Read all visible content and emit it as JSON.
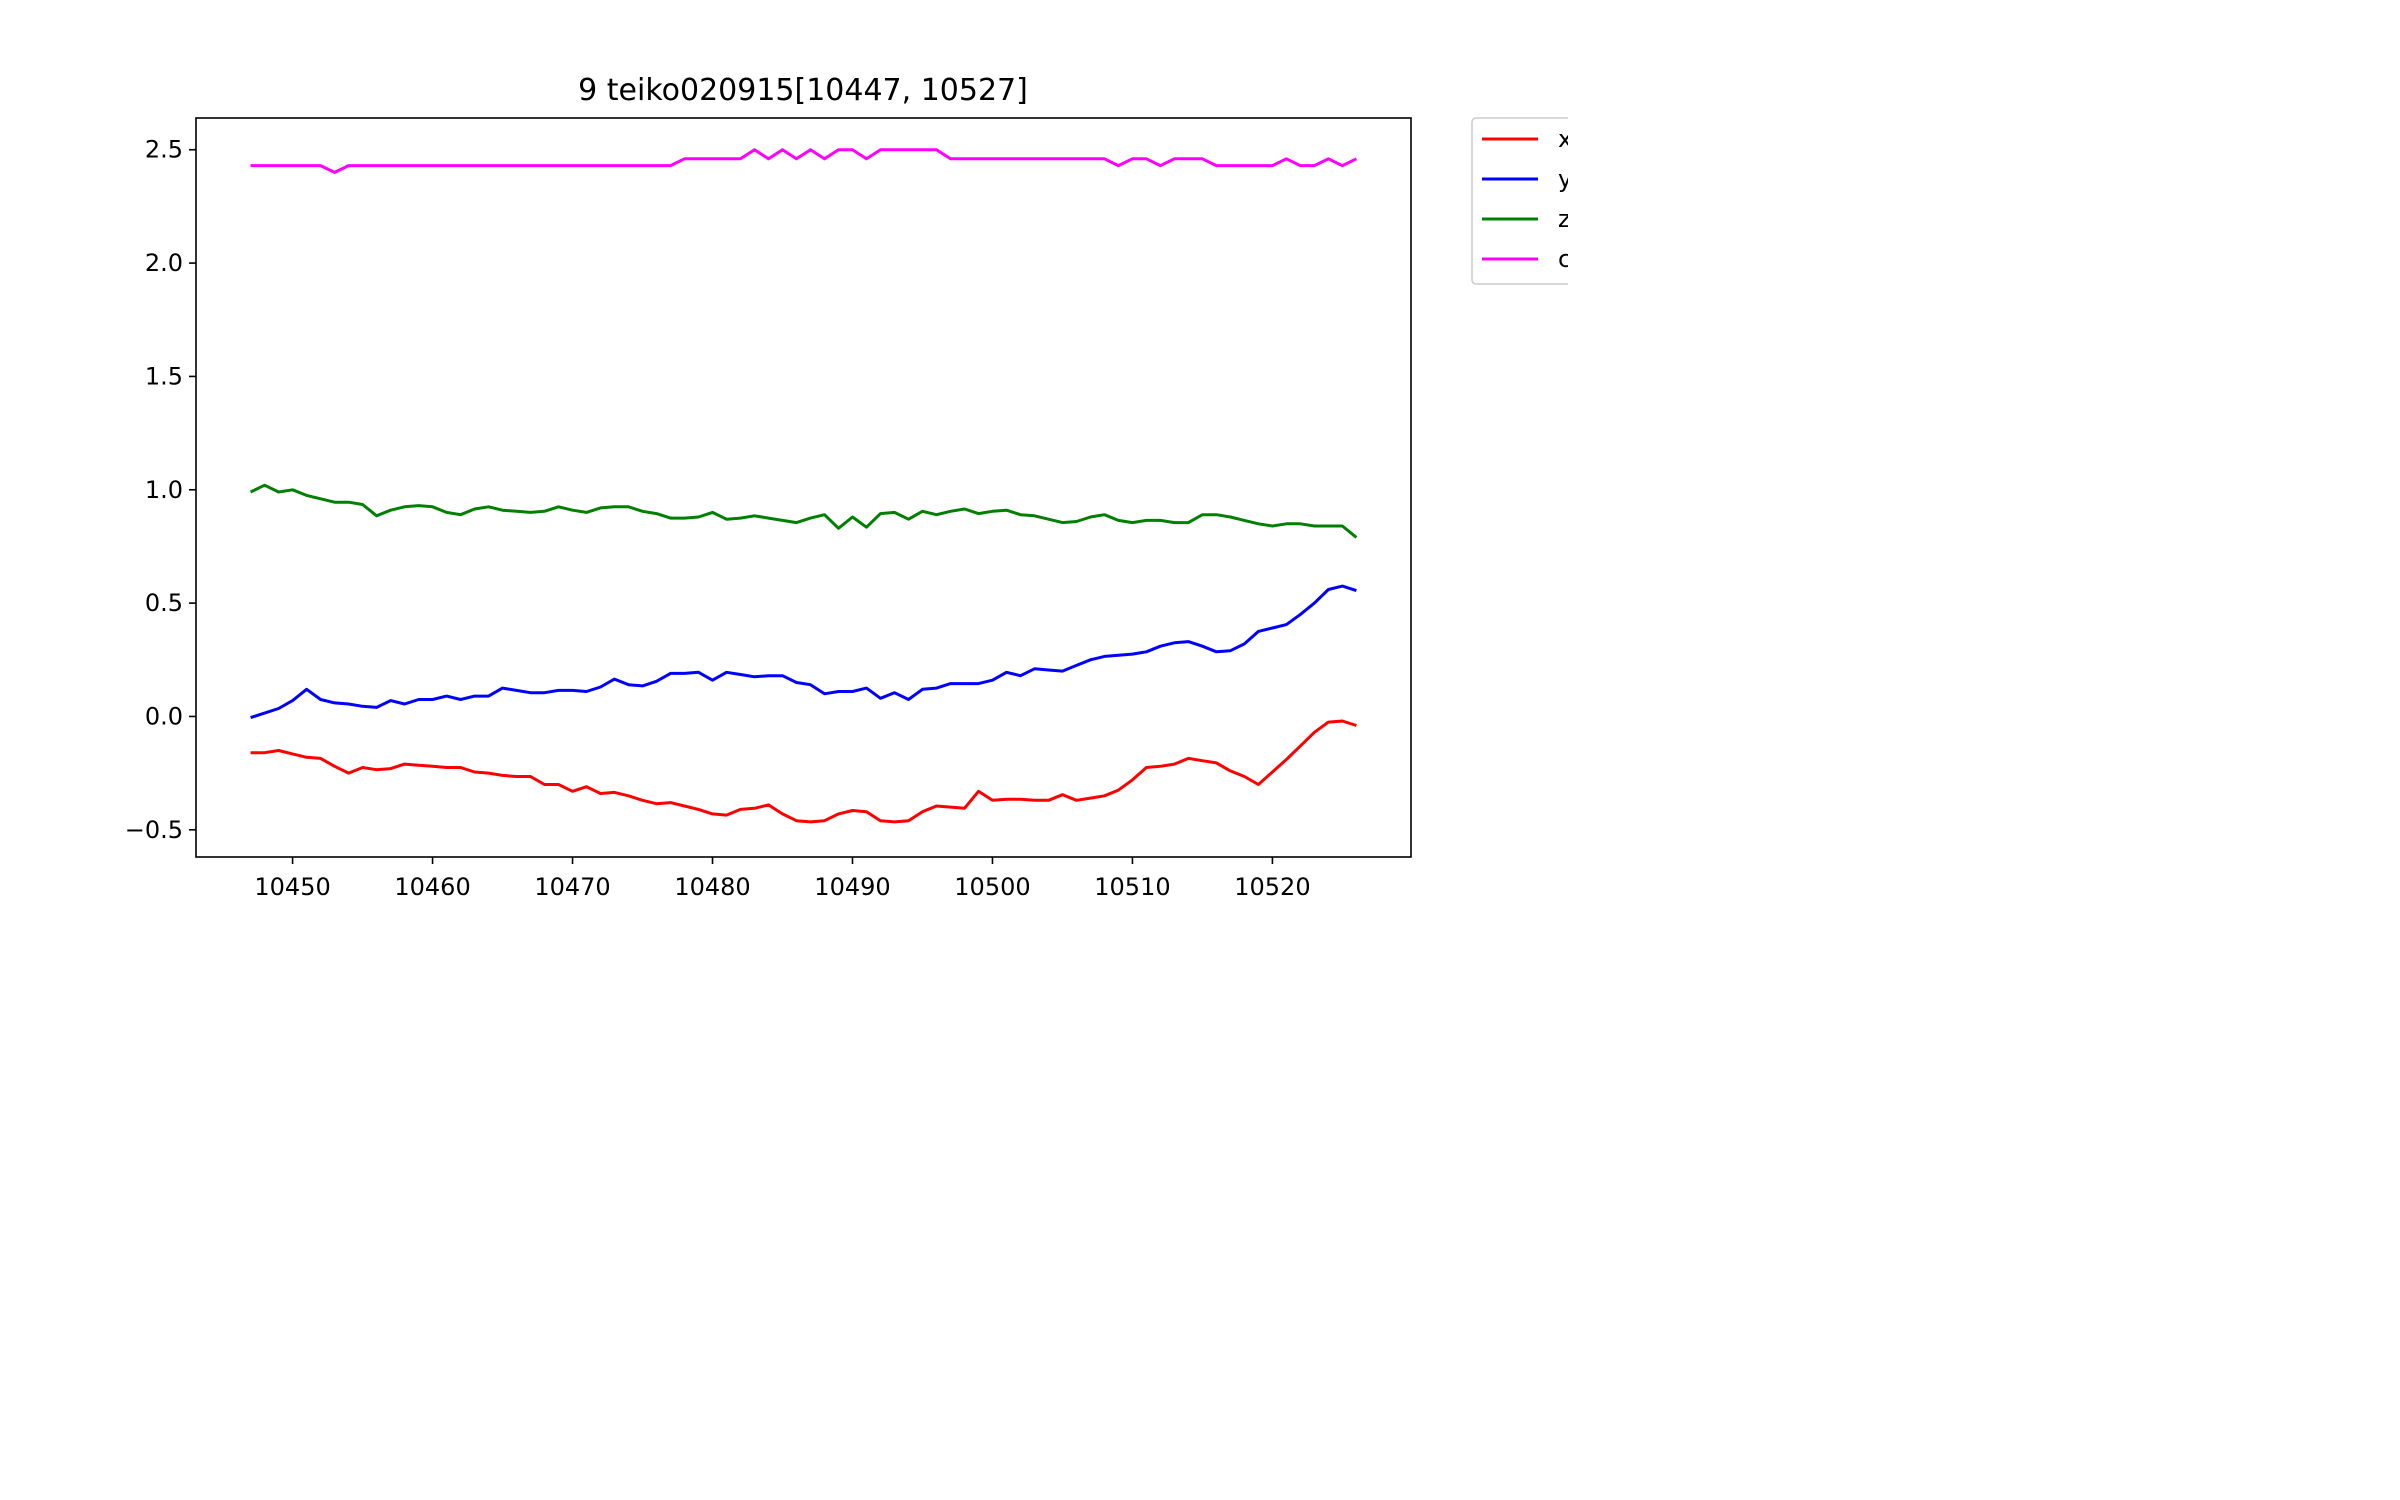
{
  "chart_data": {
    "type": "line",
    "title": "9 teiko020915[10447, 10527]",
    "xlabel": "",
    "ylabel": "",
    "xlim": [
      10443.1,
      10529.9
    ],
    "ylim": [
      -0.62,
      2.64
    ],
    "xticks": [
      10450,
      10460,
      10470,
      10480,
      10490,
      10500,
      10510,
      10520
    ],
    "xtick_labels": [
      "10450",
      "10460",
      "10470",
      "10480",
      "10490",
      "10500",
      "10510",
      "10520"
    ],
    "yticks": [
      -0.5,
      0.0,
      0.5,
      1.0,
      1.5,
      2.0,
      2.5
    ],
    "ytick_labels": [
      "−0.5",
      "0.0",
      "0.5",
      "1.0",
      "1.5",
      "2.0",
      "2.5"
    ],
    "grid": false,
    "legend_position": "outside-top-right",
    "x": [
      10447,
      10448,
      10449,
      10450,
      10451,
      10452,
      10453,
      10454,
      10455,
      10456,
      10457,
      10458,
      10459,
      10460,
      10461,
      10462,
      10463,
      10464,
      10465,
      10466,
      10467,
      10468,
      10469,
      10470,
      10471,
      10472,
      10473,
      10474,
      10475,
      10476,
      10477,
      10478,
      10479,
      10480,
      10481,
      10482,
      10483,
      10484,
      10485,
      10486,
      10487,
      10488,
      10489,
      10490,
      10491,
      10492,
      10493,
      10494,
      10495,
      10496,
      10497,
      10498,
      10499,
      10500,
      10501,
      10502,
      10503,
      10504,
      10505,
      10506,
      10507,
      10508,
      10509,
      10510,
      10511,
      10512,
      10513,
      10514,
      10515,
      10516,
      10517,
      10518,
      10519,
      10520,
      10521,
      10522,
      10523,
      10524,
      10525,
      10526
    ],
    "series": [
      {
        "name": "x",
        "color": "#ff0000",
        "values": [
          -0.16,
          -0.16,
          -0.15,
          -0.165,
          -0.18,
          -0.185,
          -0.22,
          -0.25,
          -0.225,
          -0.235,
          -0.23,
          -0.21,
          -0.215,
          -0.22,
          -0.225,
          -0.225,
          -0.245,
          -0.25,
          -0.26,
          -0.265,
          -0.265,
          -0.3,
          -0.3,
          -0.33,
          -0.31,
          -0.34,
          -0.335,
          -0.35,
          -0.37,
          -0.385,
          -0.38,
          -0.395,
          -0.41,
          -0.43,
          -0.435,
          -0.41,
          -0.405,
          -0.39,
          -0.43,
          -0.46,
          -0.465,
          -0.46,
          -0.43,
          -0.415,
          -0.42,
          -0.46,
          -0.465,
          -0.46,
          -0.42,
          -0.395,
          -0.4,
          -0.405,
          -0.33,
          -0.37,
          -0.365,
          -0.365,
          -0.37,
          -0.37,
          -0.345,
          -0.37,
          -0.36,
          -0.35,
          -0.325,
          -0.28,
          -0.225,
          -0.22,
          -0.21,
          -0.185,
          -0.195,
          -0.205,
          -0.24,
          -0.265,
          -0.3,
          -0.245,
          -0.19,
          -0.13,
          -0.07,
          -0.025,
          -0.02,
          -0.04
        ]
      },
      {
        "name": "y",
        "color": "#0000ff",
        "values": [
          -0.005,
          0.015,
          0.035,
          0.07,
          0.12,
          0.075,
          0.06,
          0.055,
          0.045,
          0.04,
          0.07,
          0.055,
          0.075,
          0.075,
          0.09,
          0.075,
          0.09,
          0.09,
          0.125,
          0.115,
          0.105,
          0.105,
          0.115,
          0.115,
          0.11,
          0.13,
          0.165,
          0.14,
          0.135,
          0.155,
          0.19,
          0.19,
          0.195,
          0.16,
          0.195,
          0.185,
          0.175,
          0.18,
          0.18,
          0.15,
          0.14,
          0.1,
          0.11,
          0.11,
          0.125,
          0.08,
          0.105,
          0.075,
          0.12,
          0.125,
          0.145,
          0.145,
          0.145,
          0.16,
          0.195,
          0.18,
          0.21,
          0.205,
          0.2,
          0.225,
          0.25,
          0.265,
          0.27,
          0.275,
          0.285,
          0.31,
          0.325,
          0.33,
          0.31,
          0.285,
          0.29,
          0.32,
          0.375,
          0.39,
          0.405,
          0.45,
          0.5,
          0.56,
          0.575,
          0.555
        ]
      },
      {
        "name": "z",
        "color": "#008000",
        "values": [
          0.99,
          1.02,
          0.99,
          1.0,
          0.975,
          0.96,
          0.945,
          0.945,
          0.935,
          0.885,
          0.91,
          0.925,
          0.93,
          0.925,
          0.9,
          0.89,
          0.915,
          0.925,
          0.91,
          0.905,
          0.9,
          0.905,
          0.925,
          0.91,
          0.9,
          0.92,
          0.925,
          0.925,
          0.905,
          0.895,
          0.875,
          0.875,
          0.88,
          0.9,
          0.87,
          0.875,
          0.885,
          0.875,
          0.865,
          0.855,
          0.875,
          0.89,
          0.83,
          0.88,
          0.835,
          0.895,
          0.9,
          0.87,
          0.905,
          0.89,
          0.905,
          0.915,
          0.895,
          0.905,
          0.91,
          0.89,
          0.885,
          0.87,
          0.855,
          0.86,
          0.88,
          0.89,
          0.865,
          0.855,
          0.865,
          0.865,
          0.855,
          0.855,
          0.89,
          0.89,
          0.88,
          0.865,
          0.85,
          0.84,
          0.85,
          0.85,
          0.84,
          0.84,
          0.84,
          0.79
        ]
      },
      {
        "name": "c",
        "color": "#ff00ff",
        "values": [
          2.43,
          2.43,
          2.43,
          2.43,
          2.43,
          2.43,
          2.4,
          2.43,
          2.43,
          2.43,
          2.43,
          2.43,
          2.43,
          2.43,
          2.43,
          2.43,
          2.43,
          2.43,
          2.43,
          2.43,
          2.43,
          2.43,
          2.43,
          2.43,
          2.43,
          2.43,
          2.43,
          2.43,
          2.43,
          2.43,
          2.43,
          2.46,
          2.46,
          2.46,
          2.46,
          2.46,
          2.5,
          2.46,
          2.5,
          2.46,
          2.5,
          2.46,
          2.5,
          2.5,
          2.46,
          2.5,
          2.5,
          2.5,
          2.5,
          2.5,
          2.46,
          2.46,
          2.46,
          2.46,
          2.46,
          2.46,
          2.46,
          2.46,
          2.46,
          2.46,
          2.46,
          2.46,
          2.43,
          2.46,
          2.46,
          2.43,
          2.46,
          2.46,
          2.46,
          2.43,
          2.43,
          2.43,
          2.43,
          2.43,
          2.46,
          2.43,
          2.43,
          2.46,
          2.43,
          2.46
        ]
      }
    ]
  }
}
